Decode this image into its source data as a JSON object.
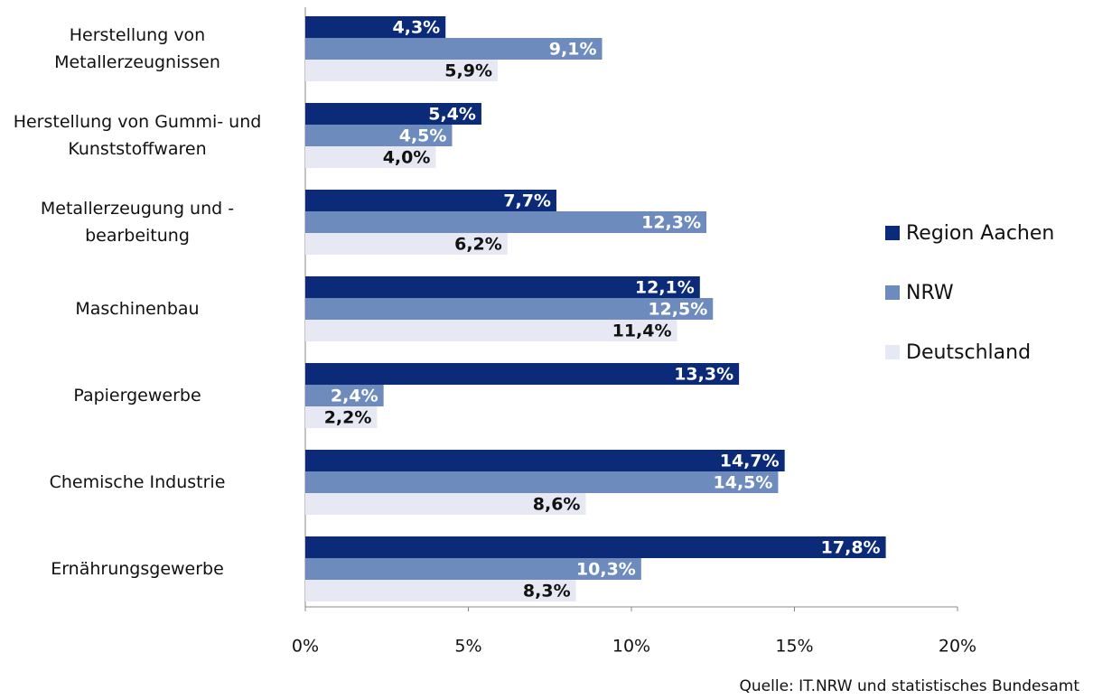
{
  "chart_data": {
    "type": "bar",
    "orientation": "horizontal",
    "categories": [
      "Herstellung von\nMetallerzeugnissen",
      "Herstellung von Gummi- und\nKunststoffwaren",
      "Metallerzeugung und -\nbearbeitung",
      "Maschinenbau",
      "Papiergewerbe",
      "Chemische Industrie",
      "Ernährungsgewerbe"
    ],
    "series": [
      {
        "name": "Region Aachen",
        "color": "#0b2a78",
        "values": [
          4.3,
          5.4,
          7.7,
          12.1,
          13.3,
          14.7,
          17.8
        ],
        "value_labels": [
          "4,3%",
          "5,4%",
          "7,7%",
          "12,1%",
          "13,3%",
          "14,7%",
          "17,8%"
        ]
      },
      {
        "name": "NRW",
        "color": "#6e8bbd",
        "values": [
          9.1,
          4.5,
          12.3,
          12.5,
          2.4,
          14.5,
          10.3
        ],
        "value_labels": [
          "9,1%",
          "4,5%",
          "12,3%",
          "12,5%",
          "2,4%",
          "14,5%",
          "10,3%"
        ]
      },
      {
        "name": "Deutschland",
        "color": "#e6e9f3",
        "values": [
          5.9,
          4.0,
          6.2,
          11.4,
          2.2,
          8.6,
          8.3
        ],
        "value_labels": [
          "5,9%",
          "4,0%",
          "6,2%",
          "11,4%",
          "2,2%",
          "8,6%",
          "8,3%"
        ]
      }
    ],
    "xlim": [
      0,
      20
    ],
    "xticks": [
      {
        "value": 0,
        "label": "0%"
      },
      {
        "value": 5,
        "label": "5%"
      },
      {
        "value": 10,
        "label": "10%"
      },
      {
        "value": 15,
        "label": "15%"
      },
      {
        "value": 20,
        "label": "20%"
      }
    ],
    "legend": "right",
    "source": "Quelle: IT.NRW und statistisches Bundesamt"
  }
}
